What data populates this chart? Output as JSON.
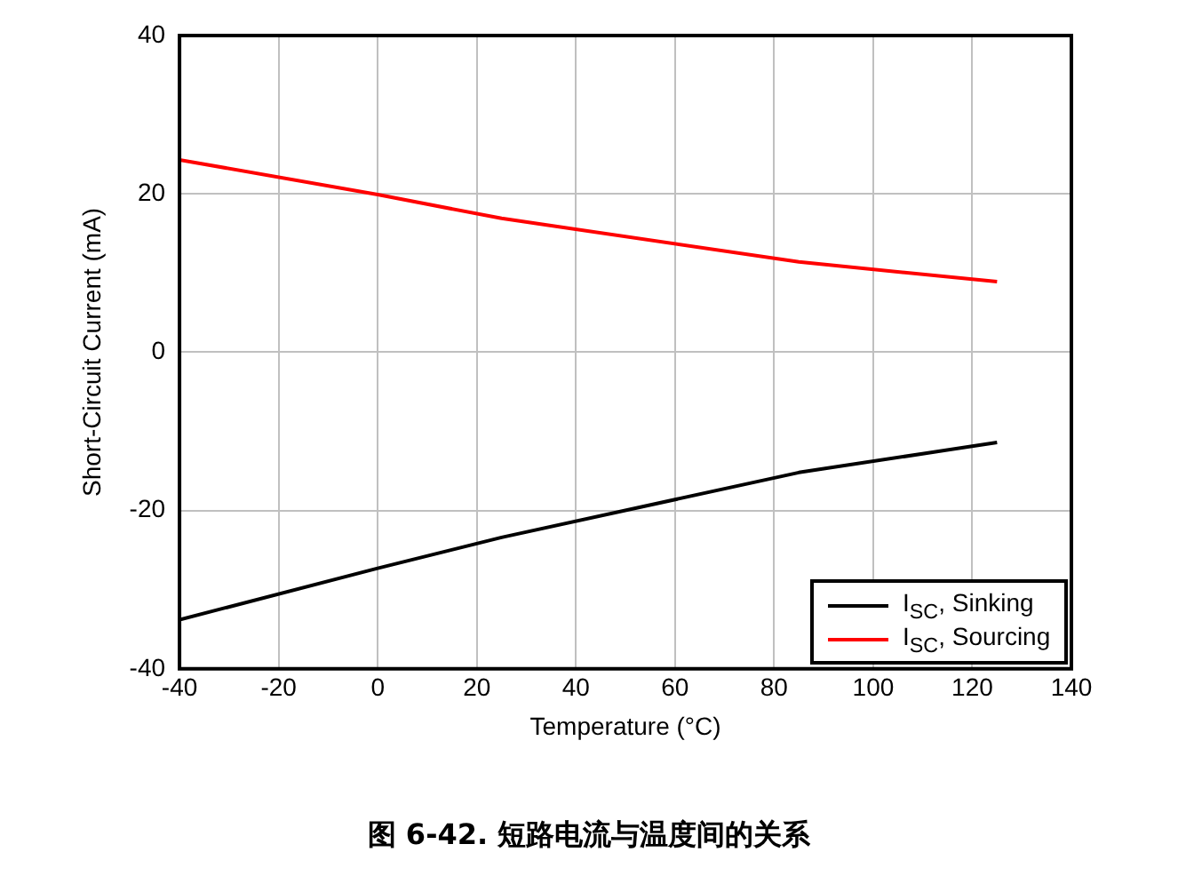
{
  "chart_data": {
    "type": "line",
    "xlabel": "Temperature (°C)",
    "ylabel": "Short-Circuit Current (mA)",
    "x": [
      -40,
      0,
      25,
      85,
      125
    ],
    "series": [
      {
        "name": "I$_{SC}$, Sinking",
        "color": "#000000",
        "values": [
          -33.8,
          -27.3,
          -23.4,
          -15.2,
          -11.4
        ]
      },
      {
        "name": "I$_{SC}$, Sourcing",
        "color": "#ff0000",
        "values": [
          24.3,
          19.9,
          16.9,
          11.4,
          8.9
        ]
      }
    ],
    "xlim": [
      -40,
      140
    ],
    "xticks": [
      -40,
      -20,
      0,
      20,
      40,
      60,
      80,
      100,
      120,
      140
    ],
    "ylim": [
      -40,
      40
    ],
    "yticks": [
      -40,
      -20,
      0,
      20,
      40
    ],
    "grid": true,
    "legend": "bottom right",
    "marker": "none",
    "line_style": "solid",
    "annotations": [
      "图 6-42. 短路电流与温度间的关系"
    ]
  }
}
